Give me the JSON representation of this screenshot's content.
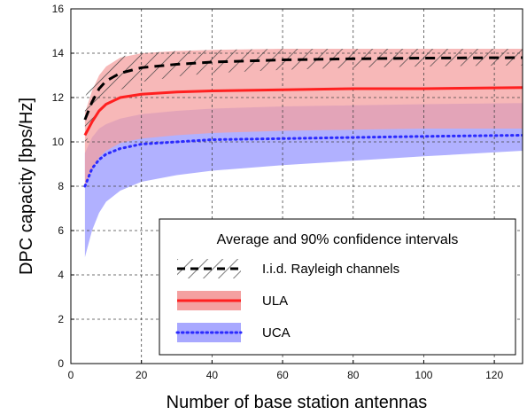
{
  "chart_data": {
    "type": "line",
    "title": "",
    "xlabel": "Number of base station antennas",
    "ylabel": "DPC capacity [bps/Hz]",
    "xlim": [
      0,
      128
    ],
    "ylim": [
      0,
      16
    ],
    "xticks": [
      0,
      20,
      40,
      60,
      80,
      100,
      120
    ],
    "yticks": [
      0,
      2,
      4,
      6,
      8,
      10,
      12,
      14,
      16
    ],
    "grid": true,
    "legend": {
      "title": "Average and 90% confidence intervals",
      "placement": "bottom-right"
    },
    "series": [
      {
        "name": "I.i.d. Rayleigh channels",
        "color": "#000000",
        "fill": "hatched",
        "style": "dashed",
        "x": [
          4,
          6,
          8,
          10,
          14,
          20,
          30,
          40,
          60,
          80,
          100,
          128
        ],
        "mean": [
          11.0,
          11.8,
          12.4,
          12.75,
          13.1,
          13.35,
          13.5,
          13.6,
          13.7,
          13.75,
          13.78,
          13.8
        ],
        "lower": [
          9.8,
          10.8,
          11.5,
          11.9,
          12.35,
          12.7,
          12.95,
          13.1,
          13.25,
          13.35,
          13.4,
          13.45
        ],
        "upper": [
          12.0,
          12.8,
          13.3,
          13.6,
          13.85,
          14.0,
          14.1,
          14.15,
          14.2,
          14.2,
          14.2,
          14.2
        ]
      },
      {
        "name": "ULA",
        "color": "#ff2020",
        "fill": "#f4a0a0",
        "style": "solid",
        "x": [
          4,
          6,
          8,
          10,
          14,
          20,
          30,
          40,
          60,
          80,
          100,
          128
        ],
        "mean": [
          10.3,
          10.9,
          11.4,
          11.7,
          12.0,
          12.15,
          12.25,
          12.3,
          12.35,
          12.4,
          12.4,
          12.45
        ],
        "lower": [
          8.0,
          8.7,
          9.3,
          9.6,
          9.95,
          10.15,
          10.3,
          10.4,
          10.5,
          10.55,
          10.6,
          10.6
        ],
        "upper": [
          11.3,
          12.3,
          13.0,
          13.4,
          13.8,
          14.0,
          14.1,
          14.15,
          14.2,
          14.2,
          14.2,
          14.2
        ]
      },
      {
        "name": "UCA",
        "color": "#2a2aff",
        "fill": "#a8a8ff",
        "style": "dotted",
        "x": [
          4,
          6,
          8,
          10,
          14,
          20,
          30,
          40,
          60,
          80,
          100,
          128
        ],
        "mean": [
          8.0,
          8.8,
          9.2,
          9.45,
          9.7,
          9.9,
          10.0,
          10.1,
          10.15,
          10.2,
          10.25,
          10.3
        ],
        "lower": [
          4.8,
          6.0,
          6.8,
          7.3,
          7.8,
          8.2,
          8.5,
          8.7,
          8.95,
          9.15,
          9.35,
          9.6
        ],
        "upper": [
          9.5,
          10.2,
          10.6,
          10.8,
          11.05,
          11.25,
          11.4,
          11.5,
          11.6,
          11.65,
          11.7,
          11.75
        ]
      }
    ]
  }
}
